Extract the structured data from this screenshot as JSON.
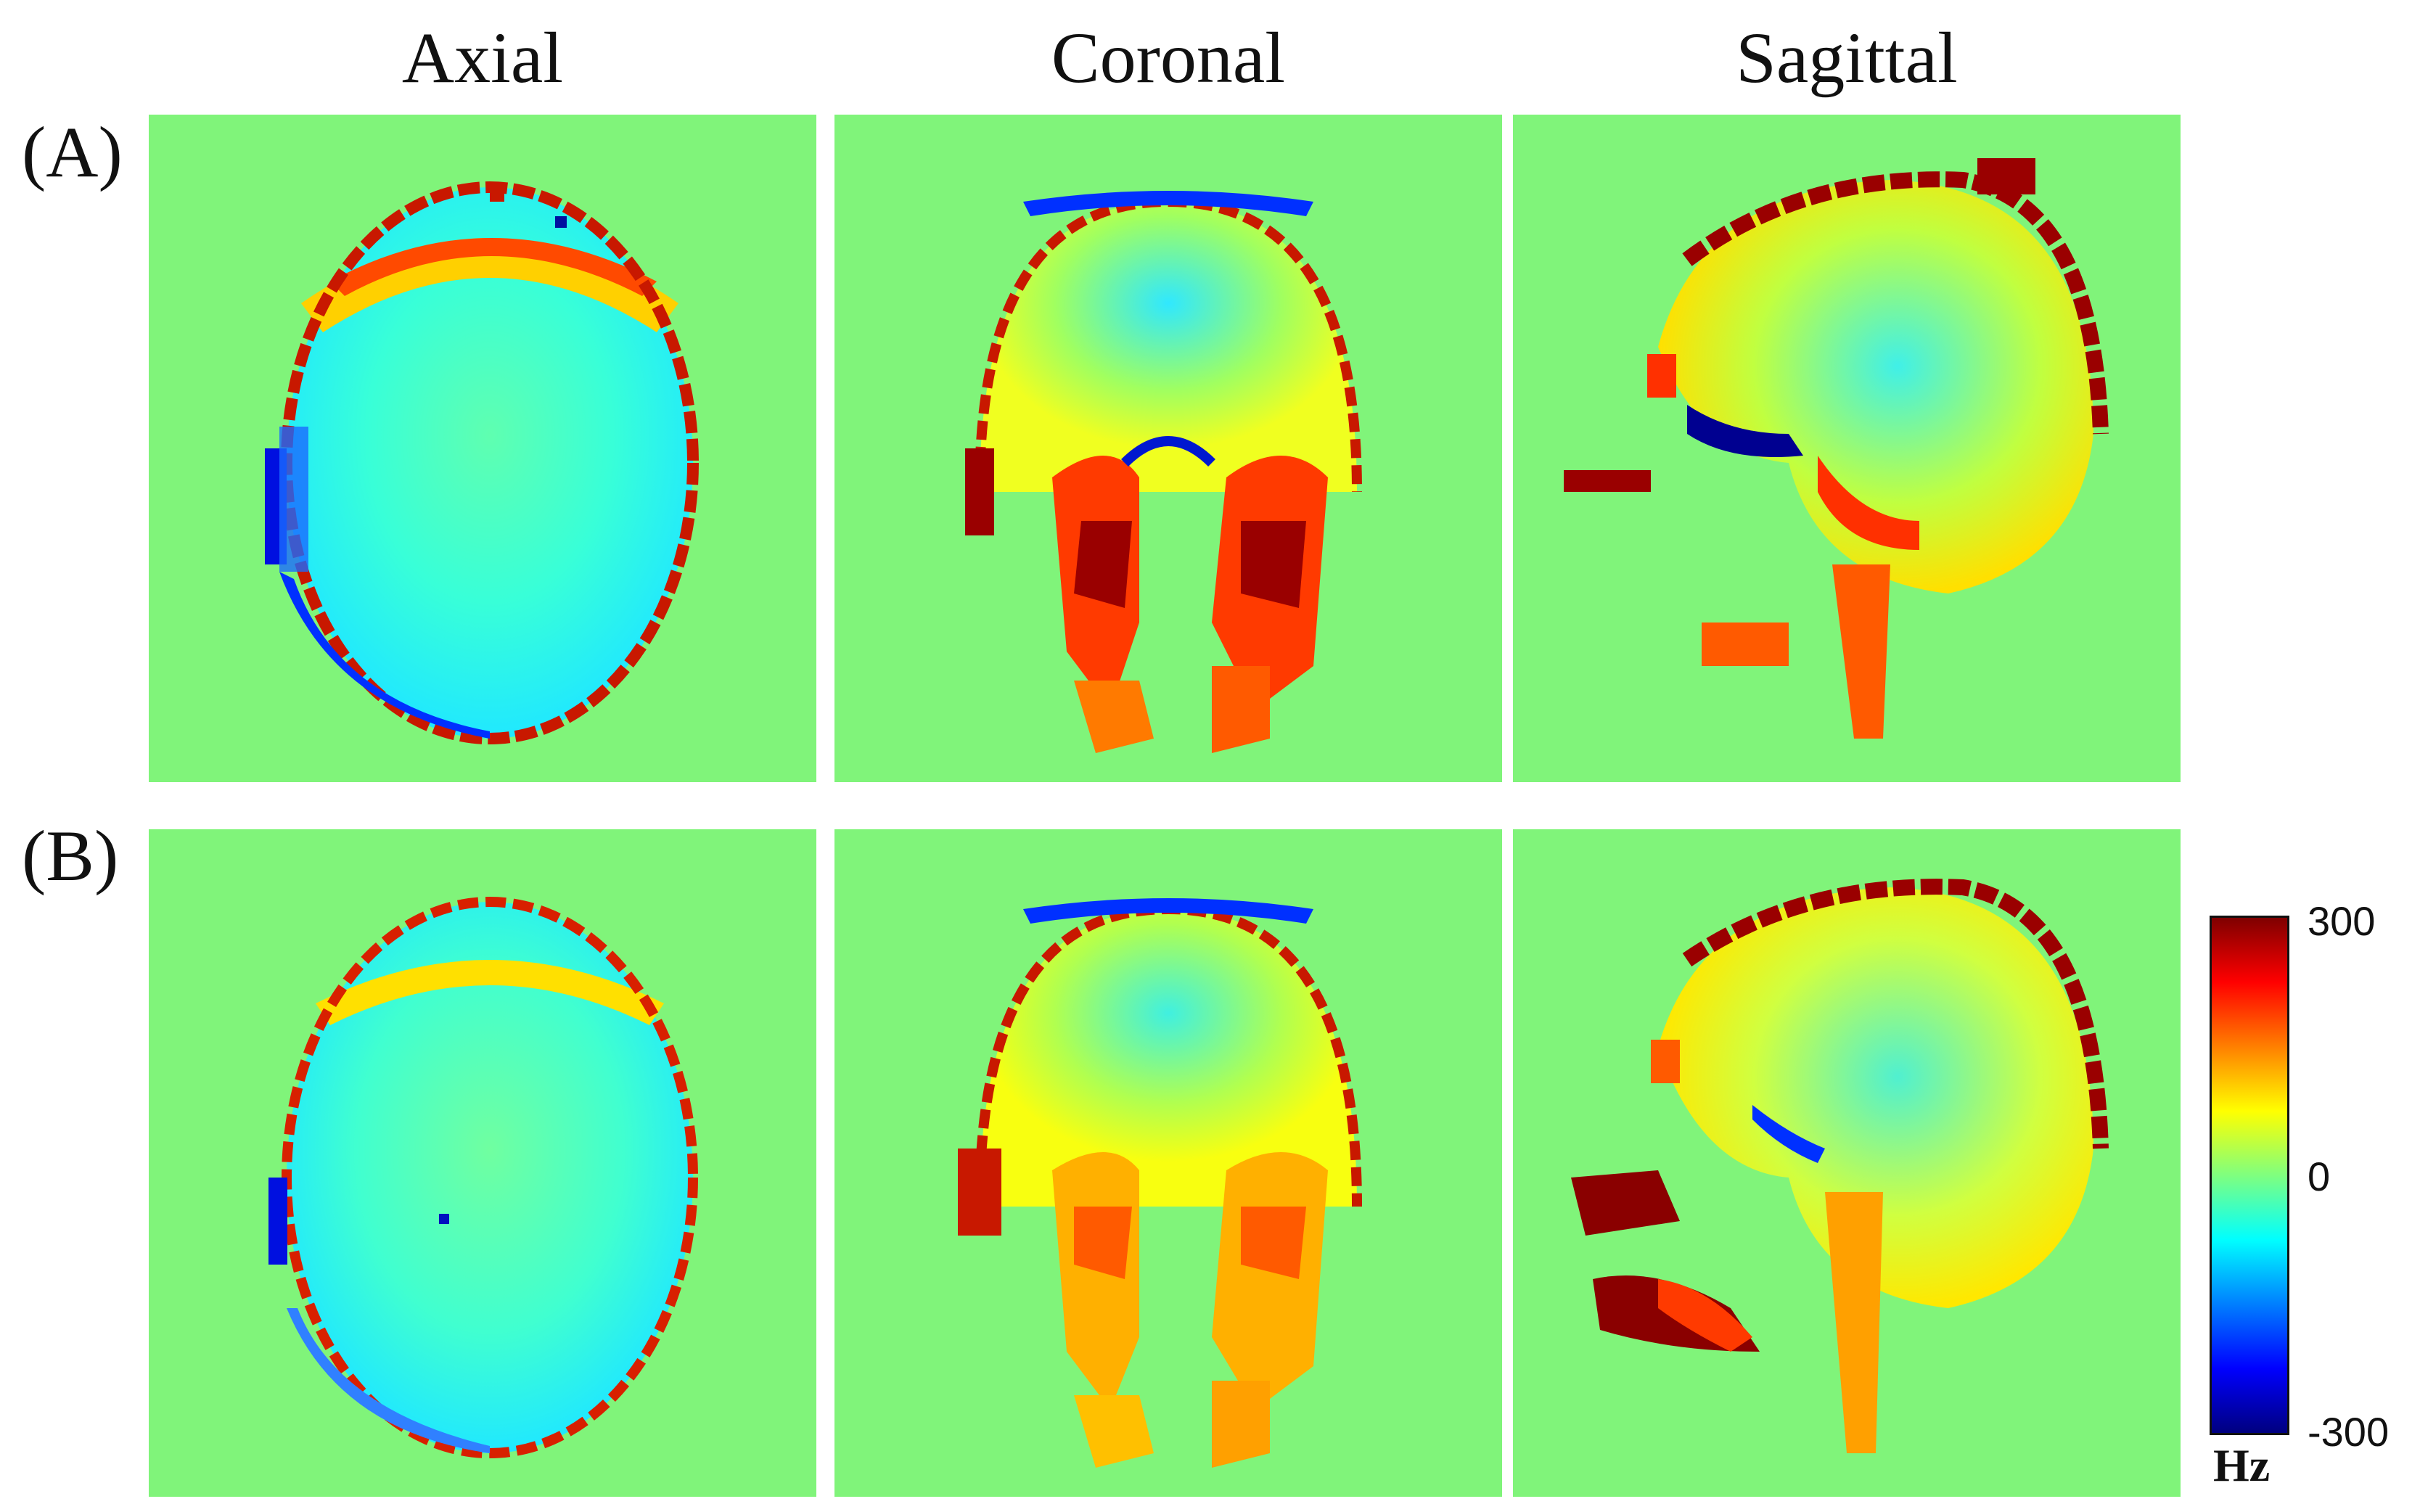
{
  "columns": [
    "Axial",
    "Coronal",
    "Sagittal"
  ],
  "rows": [
    "(A)",
    "(B)"
  ],
  "colorbar": {
    "max_label": "300",
    "mid_label": "0",
    "min_label": "-300",
    "unit": "Hz",
    "colors": [
      "#00007f",
      "#0000ff",
      "#007fff",
      "#00ffff",
      "#7fff7f",
      "#ffff00",
      "#ff7f00",
      "#ff0000",
      "#7f0000"
    ]
  },
  "background_color": "#80f47a"
}
